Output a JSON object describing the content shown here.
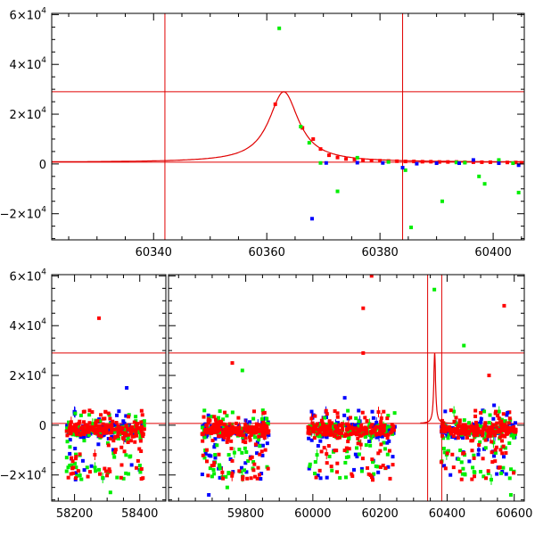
{
  "chart_data": [
    {
      "type": "scatter",
      "panel": "top",
      "x_ticks": [
        "60340",
        "60360",
        "60380",
        "60400"
      ],
      "x_tick_values": [
        60340,
        60360,
        60380,
        60400
      ],
      "y_ticks": [
        {
          "value": 60000,
          "mantissa": "6×10",
          "exp": "4"
        },
        {
          "value": 40000,
          "mantissa": "4×10",
          "exp": "4"
        },
        {
          "value": 20000,
          "mantissa": "2×10",
          "exp": "4"
        },
        {
          "value": 0,
          "mantissa": "0",
          "exp": ""
        },
        {
          "value": -20000,
          "mantissa": "−2×10",
          "exp": "4"
        }
      ],
      "xlim": [
        60322,
        60405.5
      ],
      "ylim": [
        -30500,
        60500
      ],
      "vertical_lines": [
        60342,
        60384
      ],
      "horizontal_lines": [
        29000,
        700
      ],
      "model_curve": {
        "peak_x": 60363,
        "peak_y": 29000,
        "baseline": 700,
        "width": 3.2
      },
      "series": [
        {
          "color": "#ff0000",
          "points": [
            [
              60361.5,
              24000
            ],
            [
              60366.3,
              14500
            ],
            [
              60368.2,
              10000
            ],
            [
              60369.5,
              6000
            ],
            [
              60371,
              3500
            ],
            [
              60372.5,
              2600
            ],
            [
              60374,
              2000
            ],
            [
              60375.5,
              1800
            ],
            [
              60377,
              1600
            ],
            [
              60378.5,
              1400
            ],
            [
              60380,
              1300
            ],
            [
              60381.5,
              1200
            ],
            [
              60383,
              1100
            ],
            [
              60384.5,
              1000
            ],
            [
              60386,
              1000
            ],
            [
              60387.5,
              900
            ],
            [
              60389,
              900
            ],
            [
              60390.5,
              800
            ],
            [
              60392,
              800
            ],
            [
              60393.5,
              800
            ],
            [
              60395,
              700
            ],
            [
              60396.5,
              700
            ],
            [
              60398,
              700
            ],
            [
              60399.5,
              700
            ],
            [
              60401,
              700
            ],
            [
              60402.5,
              600
            ],
            [
              60404,
              600
            ],
            [
              60405,
              500
            ]
          ]
        },
        {
          "color": "#00ee00",
          "points": [
            [
              60362.2,
              54500
            ],
            [
              60366,
              15000
            ],
            [
              60367.5,
              8500
            ],
            [
              60369.5,
              400
            ],
            [
              60372.5,
              -11000
            ],
            [
              60376,
              2500
            ],
            [
              60381.5,
              800
            ],
            [
              60384.5,
              -2500
            ],
            [
              60385.5,
              -25500
            ],
            [
              60391,
              -15000
            ],
            [
              60393.5,
              600
            ],
            [
              60395,
              500
            ],
            [
              60397.5,
              -5000
            ],
            [
              60398.5,
              -8000
            ],
            [
              60401,
              1600
            ],
            [
              60403.5,
              300
            ],
            [
              60404.5,
              -11500
            ]
          ]
        },
        {
          "color": "#0000ff",
          "points": [
            [
              60368,
              -22000
            ],
            [
              60370.5,
              400
            ],
            [
              60376,
              500
            ],
            [
              60380.5,
              400
            ],
            [
              60384,
              -1500
            ],
            [
              60386.5,
              100
            ],
            [
              60390,
              300
            ],
            [
              60394,
              300
            ],
            [
              60396.5,
              1600
            ],
            [
              60401,
              300
            ],
            [
              60404.5,
              -500
            ]
          ]
        }
      ]
    },
    {
      "type": "scatter",
      "panel": "bottom",
      "x_ticks": [
        "58200",
        "58400",
        "59800",
        "60000",
        "60200",
        "60400",
        "60600"
      ],
      "axis_break": {
        "left": [
          58130,
          58480
        ],
        "right": [
          59570,
          60630
        ]
      },
      "y_ticks": [
        {
          "value": 60000,
          "mantissa": "6×10",
          "exp": "4"
        },
        {
          "value": 40000,
          "mantissa": "4×10",
          "exp": "4"
        },
        {
          "value": 20000,
          "mantissa": "2×10",
          "exp": "4"
        },
        {
          "value": 0,
          "mantissa": "0",
          "exp": ""
        },
        {
          "value": -20000,
          "mantissa": "−2×10",
          "exp": "4"
        }
      ],
      "ylim": [
        -30500,
        60500
      ],
      "vertical_lines": [
        60342,
        60384
      ],
      "horizontal_lines": [
        29000,
        700
      ],
      "seasons": [
        {
          "x0": 58175,
          "x1": 58415
        },
        {
          "x0": 59670,
          "x1": 59870
        },
        {
          "x0": 59985,
          "x1": 60245
        },
        {
          "x0": 60382,
          "x1": 60605
        }
      ],
      "outliers": [
        {
          "x": 58275,
          "y": 43000,
          "color": "#ff0000"
        },
        {
          "x": 58360,
          "y": 15000,
          "color": "#0000ff"
        },
        {
          "x": 59790,
          "y": 22000,
          "color": "#00ee00"
        },
        {
          "x": 59760,
          "y": 25000,
          "color": "#ff0000"
        },
        {
          "x": 60150,
          "y": 47000,
          "color": "#ff0000"
        },
        {
          "x": 60175,
          "y": 60000,
          "color": "#ff0000"
        },
        {
          "x": 60150,
          "y": 29000,
          "color": "#ff0000"
        },
        {
          "x": 60362,
          "y": 54500,
          "color": "#00ee00"
        },
        {
          "x": 60450,
          "y": 32000,
          "color": "#00ee00"
        },
        {
          "x": 60570,
          "y": 48000,
          "color": "#ff0000"
        },
        {
          "x": 60525,
          "y": 20000,
          "color": "#ff0000"
        },
        {
          "x": 60095,
          "y": 11000,
          "color": "#0000ff"
        },
        {
          "x": 60540,
          "y": 8000,
          "color": "#0000ff"
        },
        {
          "x": 60580,
          "y": 5000,
          "color": "#0000ff"
        },
        {
          "x": 58230,
          "y": -18000,
          "color": "#0000ff"
        },
        {
          "x": 58310,
          "y": -27000,
          "color": "#00ee00"
        },
        {
          "x": 59690,
          "y": -28000,
          "color": "#0000ff"
        },
        {
          "x": 59745,
          "y": -25000,
          "color": "#00ee00"
        },
        {
          "x": 60410,
          "y": -20000,
          "color": "#0000ff"
        },
        {
          "x": 60590,
          "y": -28000,
          "color": "#00ee00"
        }
      ]
    }
  ]
}
